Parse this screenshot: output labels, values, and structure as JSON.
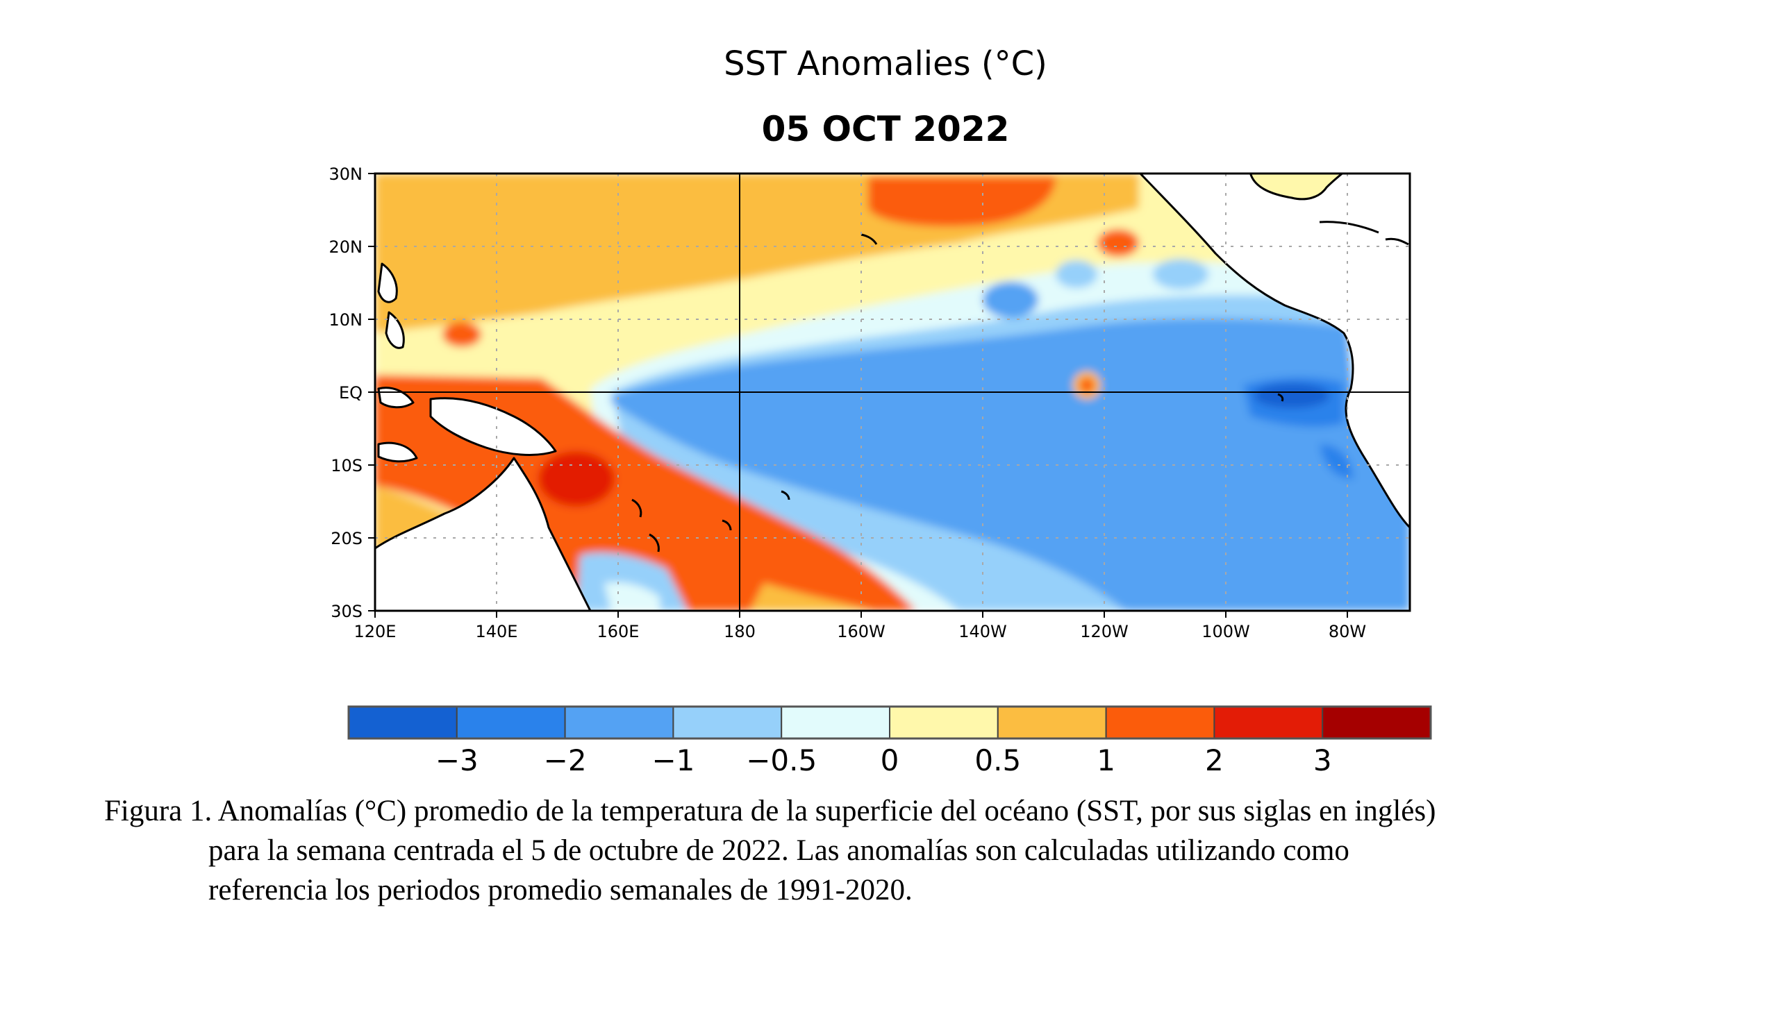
{
  "map": {
    "title": "SST Anomalies (°C)",
    "date": "05 OCT 2022",
    "lat_labels": [
      "30N",
      "20N",
      "10N",
      "EQ",
      "10S",
      "20S",
      "30S"
    ],
    "lon_labels": [
      "120E",
      "140E",
      "160E",
      "180",
      "160W",
      "140W",
      "120W",
      "100W",
      "80W"
    ],
    "extent": {
      "lon": [
        120,
        290
      ],
      "lat": [
        -30,
        30
      ]
    },
    "grid": "dotted",
    "land_color": "#ffffff"
  },
  "colorbar": {
    "colors": [
      "#1461d2",
      "#2a82eb",
      "#54a2f3",
      "#96d0fa",
      "#e2fbfc",
      "#fff8ab",
      "#fbbd41",
      "#fb5c0b",
      "#e31c06",
      "#a50000"
    ],
    "labels": [
      "−3",
      "−2",
      "−1",
      "−0.5",
      "0",
      "0.5",
      "1",
      "2",
      "3"
    ]
  },
  "caption": {
    "line1": "Figura 1. Anomalías (°C) promedio de la temperatura de la superficie del océano (SST, por sus siglas en inglés)",
    "line2": "para la semana centrada el 5 de octubre de 2022. Las anomalías son calculadas utilizando como",
    "line3": "referencia los periodos promedio semanales de 1991-2020."
  }
}
